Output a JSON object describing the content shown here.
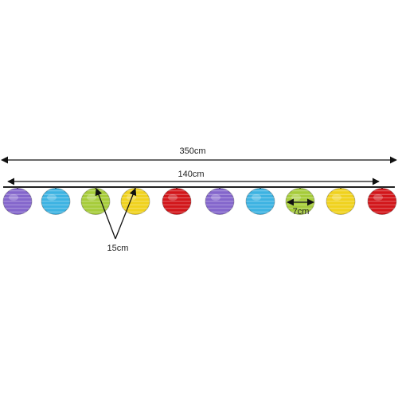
{
  "dimensions": {
    "total_length": "350cm",
    "lit_length": "140cm",
    "spacing": "15cm",
    "diameter": "7cm"
  }
}
